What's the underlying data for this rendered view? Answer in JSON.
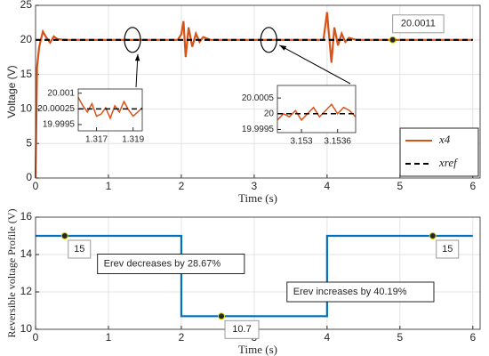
{
  "chart_data": [
    {
      "type": "line",
      "ylabel": "Voltage (V)",
      "xlabel": "Time (s)",
      "xlim": [
        0,
        6.1
      ],
      "xticks": [
        0,
        1,
        2,
        3,
        4,
        5,
        6
      ],
      "ylim": [
        0,
        25
      ],
      "yticks": [
        0,
        5,
        10,
        15,
        20,
        25
      ],
      "grid": true,
      "legend": "southeast",
      "series": [
        {
          "name": "x4",
          "color": "#d95319",
          "dash": false,
          "x": [
            0,
            0.02,
            0.05,
            0.1,
            0.15,
            0.2,
            0.25,
            0.3,
            0.4,
            0.6,
            1.0,
            1.5,
            1.95,
            2.0,
            2.03,
            2.06,
            2.1,
            2.15,
            2.2,
            2.25,
            2.3,
            2.4,
            2.5,
            2.8,
            3.2,
            3.6,
            3.95,
            4.0,
            4.02,
            4.06,
            4.1,
            4.15,
            4.2,
            4.25,
            4.3,
            4.4,
            4.5,
            4.8,
            5.5,
            6.0
          ],
          "values": [
            0,
            16,
            19,
            21.2,
            20.3,
            19.6,
            20.5,
            20.1,
            20,
            20,
            20,
            20,
            20,
            20.8,
            22.7,
            17.5,
            21.8,
            19.0,
            20.9,
            19.7,
            20.4,
            20,
            20,
            20,
            20,
            20,
            20,
            24,
            21.5,
            16.7,
            21.8,
            19.2,
            20.9,
            19.7,
            20.3,
            20,
            20,
            20,
            20,
            20
          ]
        },
        {
          "name": "xref",
          "color": "#000000",
          "dash": true,
          "x": [
            0,
            6
          ],
          "values": [
            20,
            20
          ]
        }
      ],
      "annotations": [
        {
          "x": 4.9,
          "y": 20.0011,
          "label": "20.0011"
        }
      ]
    },
    {
      "type": "line",
      "xlim": [
        1.316,
        1.3195
      ],
      "xticks": [
        1.317,
        1.319
      ],
      "ylim": [
        19.9992,
        20.0012
      ],
      "yticks": [
        19.9995,
        20.00025,
        20.001
      ],
      "grid": false,
      "series": [
        {
          "color": "#d95319",
          "dash": false,
          "x": [
            1.316,
            1.31625,
            1.3165,
            1.31675,
            1.317,
            1.31725,
            1.3175,
            1.31775,
            1.318,
            1.31825,
            1.3185,
            1.31875,
            1.319,
            1.3195
          ],
          "values": [
            20.0008,
            20.0004,
            20.0001,
            20.0005,
            19.9999,
            20.0,
            20.0003,
            19.9998,
            20.0004,
            20.0001,
            20.0006,
            20.0002,
            19.9999,
            20.0003
          ]
        },
        {
          "color": "#000000",
          "dash": true,
          "x": [
            1.316,
            1.3195
          ],
          "values": [
            20.00025,
            20.00025
          ]
        }
      ]
    },
    {
      "type": "line",
      "xlim": [
        3.1526,
        3.1539
      ],
      "xticks": [
        3.153,
        3.1536
      ],
      "ylim": [
        19.9994,
        20.0009
      ],
      "yticks": [
        19.9995,
        20,
        20.0005
      ],
      "grid": false,
      "series": [
        {
          "color": "#d95319",
          "dash": false,
          "x": [
            3.1526,
            3.1527,
            3.1528,
            3.1529,
            3.153,
            3.1531,
            3.1532,
            3.1533,
            3.1534,
            3.1535,
            3.1536,
            3.1537,
            3.1538,
            3.1539
          ],
          "values": [
            19.9998,
            20.0,
            19.9999,
            20.0001,
            19.9998,
            20.0,
            20.0002,
            19.9999,
            20.0001,
            20.0003,
            20.0,
            20.0002,
            20.0001,
            19.9999
          ]
        },
        {
          "color": "#000000",
          "dash": true,
          "x": [
            3.1526,
            3.1539
          ],
          "values": [
            20,
            20
          ]
        }
      ]
    },
    {
      "type": "line",
      "ylabel": "Reversible voltage Profile (V)",
      "xlabel": "Time (s)",
      "xlim": [
        0,
        6.1
      ],
      "xticks": [
        0,
        1,
        2,
        3,
        4,
        5,
        6
      ],
      "ylim": [
        10,
        16
      ],
      "yticks": [
        10,
        12,
        14,
        16
      ],
      "grid": true,
      "series": [
        {
          "color": "#0072bd",
          "dash": false,
          "x": [
            0,
            2,
            2,
            4,
            4,
            6
          ],
          "values": [
            15,
            15,
            10.7,
            10.7,
            15,
            15
          ]
        }
      ],
      "annotations": [
        {
          "x": 0.4,
          "y": 15,
          "label": "15"
        },
        {
          "x": 2.55,
          "y": 10.7,
          "label": "10.7"
        },
        {
          "x": 5.45,
          "y": 15,
          "label": "15"
        }
      ],
      "notes": [
        "Erev decreases by 28.67%",
        "Erev increases by 40.19%"
      ]
    }
  ]
}
